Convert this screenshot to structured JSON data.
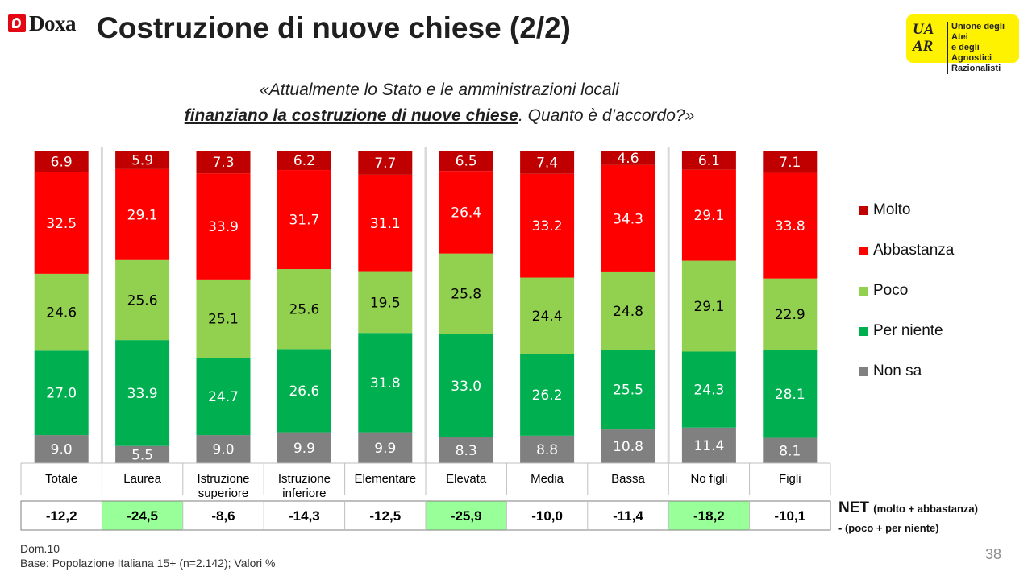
{
  "header": {
    "brand": "Doxa",
    "title": "Costruzione di nuove chiese (2/2)",
    "partner_logo_lines": [
      "Unione degli Atei",
      "e degli Agnostici",
      "Razionalisti"
    ],
    "partner_logo_mark": [
      "UA",
      "AR"
    ]
  },
  "question": {
    "line1": "«Attualmente lo Stato e le amministrazioni locali",
    "line2_underlined": "finanziano la costruzione di nuove chiese",
    "line2_rest": ". Quanto è d’accordo?»"
  },
  "colors": {
    "Molto": "#c00000",
    "Abbastanza": "#ff0000",
    "Poco": "#92d050",
    "Per niente": "#00b050",
    "Non sa": "#808080",
    "net_highlight": "#99ff99"
  },
  "chart_data": {
    "type": "bar",
    "stacked": true,
    "unit": "%",
    "categories": [
      [
        "Totale"
      ],
      [
        "Laurea"
      ],
      [
        "Istruzione",
        "superiore"
      ],
      [
        "Istruzione",
        "inferiore"
      ],
      [
        "Elementare"
      ],
      [
        "Elevata"
      ],
      [
        "Media"
      ],
      [
        "Bassa"
      ],
      [
        "No figli"
      ],
      [
        "Figli"
      ]
    ],
    "series": [
      {
        "name": "Non sa",
        "values": [
          9.0,
          5.5,
          9.0,
          9.9,
          9.9,
          8.3,
          8.8,
          10.8,
          11.4,
          8.1
        ],
        "labels": [
          "9.0",
          "5.5",
          "9.0",
          "9.9",
          "9.9",
          "8.3",
          "8.8",
          "10.8",
          "11.4",
          "8.1"
        ]
      },
      {
        "name": "Per niente",
        "values": [
          27.0,
          33.9,
          24.7,
          26.6,
          31.8,
          33.0,
          26.2,
          25.5,
          24.3,
          28.1
        ],
        "labels": [
          "27.0",
          "33.9",
          "24.7",
          "26.6",
          "31.8",
          "33.0",
          "26.2",
          "25.5",
          "24.3",
          "28.1"
        ]
      },
      {
        "name": "Poco",
        "values": [
          24.6,
          25.6,
          25.1,
          25.6,
          19.5,
          25.8,
          24.4,
          24.8,
          29.1,
          22.9
        ],
        "labels": [
          "24.6",
          "25.6",
          "25.1",
          "25.6",
          "19.5",
          "25.8",
          "24.4",
          "24.8",
          "29.1",
          "22.9"
        ]
      },
      {
        "name": "Abbastanza",
        "values": [
          32.5,
          29.1,
          33.9,
          31.7,
          31.1,
          26.4,
          33.2,
          34.3,
          29.1,
          33.8
        ],
        "labels": [
          "32.5",
          "29.1",
          "33.9",
          "31.7",
          "31.1",
          "26.4",
          "33.2",
          "34.3",
          "29.1",
          "33.8"
        ]
      },
      {
        "name": "Molto",
        "values": [
          6.9,
          5.9,
          7.3,
          6.2,
          7.7,
          6.5,
          7.4,
          4.6,
          6.1,
          7.1
        ],
        "labels": [
          "6.9",
          "5.9",
          "7.3",
          "6.2",
          "7.7",
          "6.5",
          "7.4",
          "4.6",
          "6.1",
          "7.1"
        ]
      }
    ],
    "legend_order": [
      "Molto",
      "Abbastanza",
      "Poco",
      "Per niente",
      "Non sa"
    ],
    "legend_position": "right",
    "ylim": [
      0,
      100
    ],
    "net": {
      "values": [
        "-12,2",
        "-24,5",
        "-8,6",
        "-14,3",
        "-12,5",
        "-25,9",
        "-10,0",
        "-11,4",
        "-18,2",
        "-10,1"
      ],
      "highlighted": [
        false,
        true,
        false,
        false,
        false,
        true,
        false,
        false,
        true,
        false
      ]
    }
  },
  "net_label": {
    "main": "NET",
    "paren": "(molto + abbastanza)",
    "sub": "- (poco + per niente)"
  },
  "footnote": {
    "line1": "Dom.10",
    "line2": "Base: Popolazione Italiana 15+ (n=2.142); Valori %"
  },
  "page_number": "38"
}
